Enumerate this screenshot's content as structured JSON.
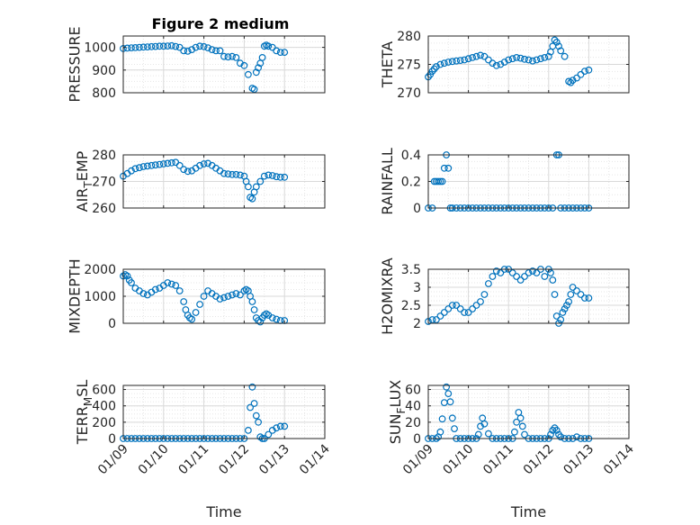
{
  "figure_title": "Figure 2 medium",
  "colors": {
    "marker": "#0072BD",
    "grid": "#d9d9d9",
    "axis": "#262626"
  },
  "chart_data": [
    {
      "id": "pressure",
      "type": "scatter",
      "ylabel": "PRESSURE",
      "ylim": [
        800,
        1050
      ],
      "yticks": [
        "800",
        "900",
        "1000"
      ],
      "ytick_values": [
        800,
        900,
        1000
      ],
      "xlim": [
        0,
        5
      ],
      "xtick_labels": [],
      "grid": true,
      "series": [
        {
          "x": [
            0.0,
            0.1,
            0.2,
            0.3,
            0.4,
            0.5,
            0.6,
            0.7,
            0.8,
            0.9,
            1.0,
            1.1,
            1.2,
            1.3,
            1.4,
            1.5,
            1.6,
            1.7,
            1.8,
            1.9,
            2.0,
            2.1,
            2.2,
            2.3,
            2.4,
            2.5,
            2.6,
            2.7,
            2.8,
            2.9,
            3.0,
            3.1,
            3.2,
            3.25,
            3.3,
            3.35,
            3.4,
            3.45,
            3.5,
            3.55,
            3.6,
            3.7,
            3.8,
            3.9,
            4.0
          ],
          "y": [
            995,
            997,
            998,
            999,
            1000,
            1001,
            1002,
            1003,
            1004,
            1005,
            1005,
            1006,
            1007,
            1004,
            1000,
            985,
            983,
            990,
            1000,
            1005,
            1003,
            998,
            990,
            985,
            985,
            960,
            958,
            960,
            955,
            930,
            920,
            880,
            820,
            815,
            890,
            910,
            930,
            955,
            1005,
            1010,
            1005,
            1000,
            985,
            978,
            978
          ]
        }
      ]
    },
    {
      "id": "theta",
      "type": "scatter",
      "ylabel": "THETA",
      "ylim": [
        270,
        280
      ],
      "yticks": [
        "270",
        "275",
        "280"
      ],
      "ytick_values": [
        270,
        275,
        280
      ],
      "xlim": [
        0,
        5
      ],
      "xtick_labels": [],
      "grid": true,
      "series": [
        {
          "x": [
            0.0,
            0.05,
            0.1,
            0.15,
            0.2,
            0.3,
            0.4,
            0.5,
            0.6,
            0.7,
            0.8,
            0.9,
            1.0,
            1.1,
            1.2,
            1.3,
            1.4,
            1.5,
            1.6,
            1.7,
            1.8,
            1.9,
            2.0,
            2.1,
            2.2,
            2.3,
            2.4,
            2.5,
            2.6,
            2.7,
            2.8,
            2.9,
            3.0,
            3.05,
            3.1,
            3.15,
            3.2,
            3.25,
            3.3,
            3.4,
            3.5,
            3.55,
            3.6,
            3.7,
            3.8,
            3.9,
            4.0
          ],
          "y": [
            272.8,
            273.2,
            273.8,
            274.2,
            274.6,
            275.0,
            275.2,
            275.4,
            275.5,
            275.6,
            275.7,
            275.8,
            276.0,
            276.2,
            276.4,
            276.6,
            276.4,
            275.8,
            275.2,
            274.8,
            275.0,
            275.4,
            275.8,
            276.0,
            276.2,
            276.1,
            275.9,
            275.8,
            275.6,
            275.8,
            276.0,
            276.2,
            276.4,
            277.2,
            278.2,
            279.3,
            278.9,
            278.2,
            277.4,
            276.4,
            272.0,
            271.8,
            272.2,
            272.6,
            273.2,
            273.8,
            274.0
          ]
        }
      ]
    },
    {
      "id": "air_temp",
      "type": "scatter",
      "ylabel": "AIR",
      "ylabel_sub": "T",
      "ylabel_rest": "EMP",
      "ylim": [
        260,
        280
      ],
      "yticks": [
        "260",
        "270",
        "280"
      ],
      "ytick_values": [
        260,
        270,
        280
      ],
      "xlim": [
        0,
        5
      ],
      "xtick_labels": [],
      "grid": true,
      "series": [
        {
          "x": [
            0.0,
            0.1,
            0.2,
            0.3,
            0.4,
            0.5,
            0.6,
            0.7,
            0.8,
            0.9,
            1.0,
            1.1,
            1.2,
            1.3,
            1.4,
            1.5,
            1.6,
            1.7,
            1.8,
            1.9,
            2.0,
            2.1,
            2.2,
            2.3,
            2.4,
            2.5,
            2.6,
            2.7,
            2.8,
            2.9,
            3.0,
            3.05,
            3.1,
            3.15,
            3.2,
            3.25,
            3.3,
            3.4,
            3.5,
            3.6,
            3.7,
            3.8,
            3.9,
            4.0
          ],
          "y": [
            272.0,
            273.0,
            274.0,
            274.8,
            275.2,
            275.6,
            275.8,
            276.0,
            276.2,
            276.4,
            276.6,
            276.8,
            277.0,
            277.2,
            276.0,
            274.5,
            273.8,
            274.0,
            275.0,
            276.0,
            276.6,
            276.8,
            276.0,
            275.0,
            274.0,
            273.0,
            272.8,
            272.6,
            272.6,
            272.4,
            272.0,
            270.0,
            268.0,
            264.0,
            263.5,
            266.0,
            268.0,
            270.0,
            272.0,
            272.4,
            272.2,
            271.8,
            271.6,
            271.6
          ]
        }
      ]
    },
    {
      "id": "rainfall",
      "type": "scatter",
      "ylabel": "RAINFALL",
      "ylim": [
        0,
        0.4
      ],
      "yticks": [
        "0",
        "0.2",
        "0.4"
      ],
      "ytick_values": [
        0,
        0.2,
        0.4
      ],
      "xlim": [
        0,
        5
      ],
      "xtick_labels": [],
      "grid": true,
      "series": [
        {
          "x": [
            0.0,
            0.1,
            0.15,
            0.2,
            0.25,
            0.3,
            0.35,
            0.4,
            0.45,
            0.5,
            0.55,
            0.6,
            0.7,
            0.8,
            0.9,
            1.0,
            1.1,
            1.2,
            1.3,
            1.4,
            1.5,
            1.6,
            1.7,
            1.8,
            1.9,
            2.0,
            2.1,
            2.2,
            2.3,
            2.4,
            2.5,
            2.6,
            2.7,
            2.8,
            2.9,
            3.0,
            3.1,
            3.2,
            3.25,
            3.3,
            3.4,
            3.5,
            3.6,
            3.7,
            3.8,
            3.9,
            4.0
          ],
          "y": [
            0,
            0,
            0.2,
            0.2,
            0.2,
            0.2,
            0.2,
            0.3,
            0.4,
            0.3,
            0,
            0,
            0,
            0,
            0,
            0,
            0,
            0,
            0,
            0,
            0,
            0,
            0,
            0,
            0,
            0,
            0,
            0,
            0,
            0,
            0,
            0,
            0,
            0,
            0,
            0,
            0,
            0.4,
            0.4,
            0,
            0,
            0,
            0,
            0,
            0,
            0,
            0
          ]
        }
      ]
    },
    {
      "id": "mixdepth",
      "type": "scatter",
      "ylabel": "MIXDEPTH",
      "ylim": [
        0,
        2000
      ],
      "yticks": [
        "0",
        "1000",
        "2000"
      ],
      "ytick_values": [
        0,
        1000,
        2000
      ],
      "xlim": [
        0,
        5
      ],
      "xtick_labels": [],
      "grid": true,
      "series": [
        {
          "x": [
            0.0,
            0.05,
            0.1,
            0.15,
            0.2,
            0.3,
            0.4,
            0.5,
            0.6,
            0.7,
            0.8,
            0.9,
            1.0,
            1.1,
            1.2,
            1.3,
            1.4,
            1.5,
            1.55,
            1.6,
            1.65,
            1.7,
            1.8,
            1.9,
            2.0,
            2.1,
            2.2,
            2.3,
            2.4,
            2.5,
            2.6,
            2.7,
            2.8,
            2.9,
            3.0,
            3.05,
            3.1,
            3.15,
            3.2,
            3.25,
            3.3,
            3.35,
            3.4,
            3.45,
            3.5,
            3.55,
            3.6,
            3.7,
            3.8,
            3.9,
            4.0
          ],
          "y": [
            1750,
            1800,
            1750,
            1600,
            1500,
            1300,
            1200,
            1100,
            1050,
            1150,
            1250,
            1300,
            1400,
            1500,
            1450,
            1400,
            1200,
            800,
            500,
            300,
            200,
            150,
            400,
            700,
            1000,
            1200,
            1100,
            1000,
            900,
            950,
            1000,
            1050,
            1100,
            1050,
            1200,
            1250,
            1200,
            1000,
            800,
            500,
            200,
            100,
            50,
            200,
            300,
            350,
            300,
            200,
            150,
            100,
            100
          ]
        }
      ]
    },
    {
      "id": "h2omixra",
      "type": "scatter",
      "ylabel": "H2OMIXRA",
      "ylim": [
        2,
        3.5
      ],
      "yticks": [
        "2",
        "2.5",
        "3",
        "3.5"
      ],
      "ytick_values": [
        2,
        2.5,
        3,
        3.5
      ],
      "xlim": [
        0,
        5
      ],
      "xtick_labels": [],
      "grid": true,
      "series": [
        {
          "x": [
            0.0,
            0.1,
            0.2,
            0.3,
            0.4,
            0.5,
            0.6,
            0.7,
            0.8,
            0.9,
            1.0,
            1.1,
            1.2,
            1.3,
            1.4,
            1.5,
            1.6,
            1.7,
            1.8,
            1.9,
            2.0,
            2.1,
            2.2,
            2.3,
            2.4,
            2.5,
            2.6,
            2.7,
            2.8,
            2.9,
            3.0,
            3.05,
            3.1,
            3.15,
            3.2,
            3.25,
            3.3,
            3.35,
            3.4,
            3.45,
            3.5,
            3.55,
            3.6,
            3.7,
            3.8,
            3.9,
            4.0
          ],
          "y": [
            2.05,
            2.1,
            2.1,
            2.2,
            2.3,
            2.4,
            2.5,
            2.5,
            2.4,
            2.3,
            2.3,
            2.4,
            2.5,
            2.6,
            2.8,
            3.1,
            3.3,
            3.45,
            3.4,
            3.5,
            3.5,
            3.4,
            3.3,
            3.2,
            3.3,
            3.4,
            3.45,
            3.4,
            3.5,
            3.3,
            3.5,
            3.4,
            3.2,
            2.8,
            2.2,
            2.0,
            2.1,
            2.3,
            2.4,
            2.5,
            2.6,
            2.8,
            3.0,
            2.9,
            2.8,
            2.7,
            2.7
          ]
        }
      ]
    },
    {
      "id": "terr_msl",
      "type": "scatter",
      "ylabel": "TERR",
      "ylabel_sub": "M",
      "ylabel_rest": "SL",
      "ylim": [
        0,
        650
      ],
      "yticks": [
        "0",
        "200",
        "400",
        "600"
      ],
      "ytick_values": [
        0,
        200,
        400,
        600
      ],
      "xlim": [
        0,
        5
      ],
      "xtick_labels": [
        "01/09",
        "01/10",
        "01/11",
        "01/12",
        "01/13",
        "01/14"
      ],
      "xlabel": "Time",
      "grid": true,
      "series": [
        {
          "x": [
            0.0,
            0.1,
            0.2,
            0.3,
            0.4,
            0.5,
            0.6,
            0.7,
            0.8,
            0.9,
            1.0,
            1.1,
            1.2,
            1.3,
            1.4,
            1.5,
            1.6,
            1.7,
            1.8,
            1.9,
            2.0,
            2.1,
            2.2,
            2.3,
            2.4,
            2.5,
            2.6,
            2.7,
            2.8,
            2.9,
            3.0,
            3.1,
            3.15,
            3.2,
            3.25,
            3.3,
            3.35,
            3.4,
            3.45,
            3.5,
            3.6,
            3.7,
            3.8,
            3.9,
            4.0
          ],
          "y": [
            0,
            0,
            0,
            0,
            0,
            0,
            0,
            0,
            0,
            0,
            0,
            0,
            0,
            0,
            0,
            0,
            0,
            0,
            0,
            0,
            0,
            0,
            0,
            0,
            0,
            0,
            0,
            0,
            0,
            0,
            0,
            100,
            380,
            630,
            430,
            280,
            200,
            20,
            0,
            0,
            50,
            100,
            130,
            150,
            150
          ]
        }
      ]
    },
    {
      "id": "sun_flux",
      "type": "scatter",
      "ylabel": "SUN",
      "ylabel_sub": "F",
      "ylabel_rest": "LUX",
      "ylim": [
        0,
        65
      ],
      "yticks": [
        "0",
        "20",
        "40",
        "60"
      ],
      "ytick_values": [
        0,
        20,
        40,
        60
      ],
      "xlim": [
        0,
        5
      ],
      "xtick_labels": [
        "01/09",
        "01/10",
        "01/11",
        "01/12",
        "01/13",
        "01/14"
      ],
      "xlabel": "Time",
      "grid": true,
      "series": [
        {
          "x": [
            0.0,
            0.1,
            0.2,
            0.25,
            0.3,
            0.35,
            0.4,
            0.45,
            0.5,
            0.55,
            0.6,
            0.65,
            0.7,
            0.8,
            0.9,
            1.0,
            1.1,
            1.2,
            1.25,
            1.3,
            1.35,
            1.4,
            1.5,
            1.6,
            1.7,
            1.8,
            1.9,
            2.0,
            2.1,
            2.15,
            2.2,
            2.25,
            2.3,
            2.35,
            2.4,
            2.5,
            2.6,
            2.7,
            2.8,
            2.9,
            3.0,
            3.05,
            3.1,
            3.15,
            3.2,
            3.25,
            3.3,
            3.4,
            3.5,
            3.6,
            3.7,
            3.8,
            3.9,
            4.0
          ],
          "y": [
            0,
            0,
            0,
            2,
            8,
            24,
            44,
            63,
            55,
            45,
            25,
            12,
            0,
            0,
            0,
            0,
            0,
            0,
            5,
            15,
            25,
            18,
            6,
            0,
            0,
            0,
            0,
            0,
            0,
            8,
            20,
            32,
            25,
            15,
            5,
            0,
            0,
            0,
            0,
            0,
            0,
            5,
            10,
            13,
            10,
            5,
            2,
            0,
            0,
            0,
            2,
            0,
            0,
            0
          ]
        }
      ]
    }
  ]
}
